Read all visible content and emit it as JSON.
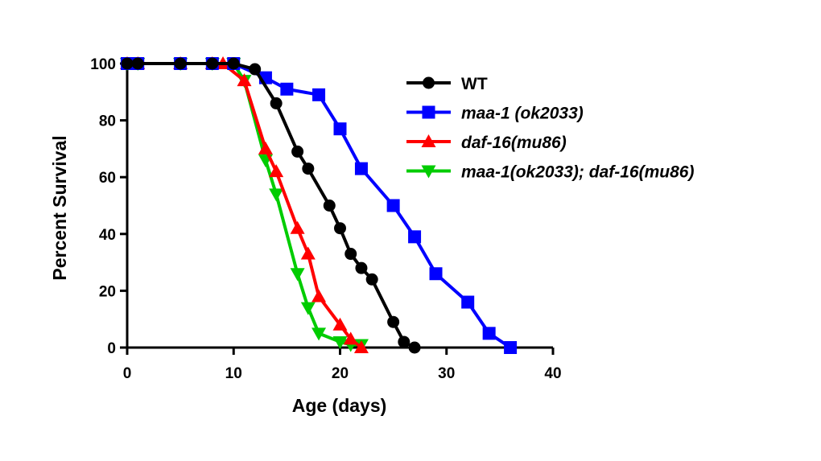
{
  "chart_data": {
    "type": "line",
    "title": "",
    "xlabel": "Age (days)",
    "ylabel": "Percent Survival",
    "xlim": [
      0,
      40
    ],
    "ylim": [
      0,
      100
    ],
    "x_ticks": [
      "0",
      "10",
      "20",
      "30",
      "40"
    ],
    "y_ticks": [
      "0",
      "20",
      "40",
      "60",
      "80",
      "100"
    ],
    "grid": false,
    "legend_position": "top-right",
    "series": [
      {
        "name": "WT",
        "italic": false,
        "color": "#000000",
        "marker": "circle",
        "x": [
          0,
          1,
          5,
          8,
          10,
          12,
          14,
          16,
          17,
          19,
          20,
          21,
          22,
          23,
          25,
          26,
          27
        ],
        "y": [
          100,
          100,
          100,
          100,
          100,
          98,
          86,
          69,
          63,
          50,
          42,
          33,
          28,
          24,
          9,
          2,
          0
        ]
      },
      {
        "name": "maa-1 (ok2033)",
        "italic": true,
        "color": "#0000ff",
        "marker": "square",
        "x": [
          0,
          1,
          5,
          8,
          10,
          13,
          15,
          18,
          20,
          22,
          25,
          27,
          29,
          32,
          34,
          36
        ],
        "y": [
          100,
          100,
          100,
          100,
          100,
          95,
          91,
          89,
          77,
          63,
          50,
          39,
          26,
          16,
          5,
          0
        ]
      },
      {
        "name": "daf-16(mu86)",
        "italic": true,
        "color": "#ff0000",
        "marker": "triangle-up",
        "x": [
          0,
          1,
          5,
          8,
          9,
          11,
          13,
          14,
          16,
          17,
          18,
          20,
          21,
          22
        ],
        "y": [
          100,
          100,
          100,
          100,
          100,
          94,
          70,
          62,
          42,
          33,
          18,
          8,
          3,
          0
        ]
      },
      {
        "name": "maa-1(ok2033); daf-16(mu86)",
        "italic": true,
        "color": "#00cc00",
        "marker": "triangle-down",
        "x": [
          0,
          1,
          5,
          8,
          10,
          11,
          13,
          14,
          16,
          17,
          18,
          20,
          21,
          22
        ],
        "y": [
          100,
          100,
          100,
          100,
          100,
          94,
          66,
          54,
          26,
          14,
          5,
          2,
          1,
          1
        ]
      }
    ]
  }
}
